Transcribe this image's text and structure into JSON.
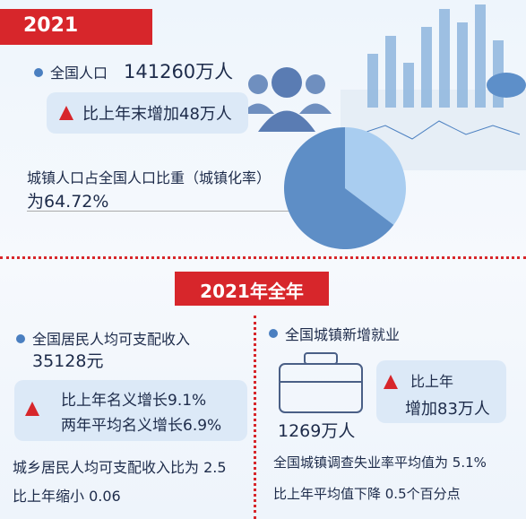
{
  "header": {
    "badge": "2021"
  },
  "population": {
    "label": "全国人口",
    "value": "141260万人",
    "change": "比上年末增加48万人"
  },
  "urbanization": {
    "label": "城镇人口占全国人口比重（城镇化率）",
    "value_text": "为64.72%",
    "value": 64.72
  },
  "section": {
    "title": "2021年全年"
  },
  "income": {
    "label": "全国居民人均可支配收入",
    "value": "35128元",
    "growth": "比上年名义增长9.1%",
    "two_year": "两年平均名义增长6.9%",
    "ratio": "城乡居民人均可支配收入比为 2.5",
    "ratio_change": "比上年缩小 0.06"
  },
  "employment": {
    "label": "全国城镇新增就业",
    "value": "1269万人",
    "change_1": "比上年",
    "change_2": "增加83万人",
    "unemployment": "全国城镇调查失业率平均值为 5.1%",
    "unemployment_change": "比上年平均值下降 0.5个百分点"
  }
}
